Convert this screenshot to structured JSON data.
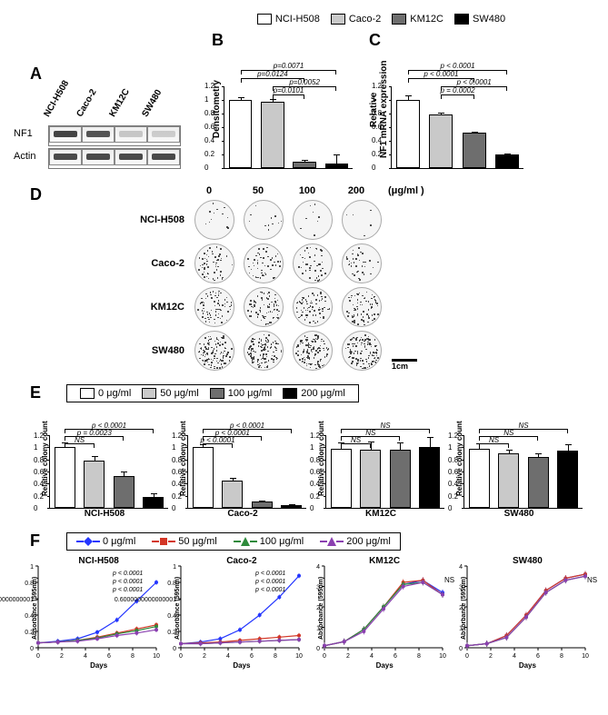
{
  "cellLines": [
    "NCI-H508",
    "Caco-2",
    "KM12C",
    "SW480"
  ],
  "topLegend": {
    "items": [
      {
        "label": "NCI-H508",
        "color": "#ffffff"
      },
      {
        "label": "Caco-2",
        "color": "#c9c9c9"
      },
      {
        "label": "KM12C",
        "color": "#6e6e6e"
      },
      {
        "label": "SW480",
        "color": "#000000"
      }
    ]
  },
  "panelA": {
    "label": "A",
    "rowLabels": [
      "NF1",
      "Actin"
    ],
    "laneHeaders": [
      "NCI-H508",
      "Caco-2",
      "KM12C",
      "SW480"
    ],
    "nf1Intensity": [
      0.85,
      0.75,
      0.08,
      0.05
    ],
    "actinIntensity": [
      0.8,
      0.8,
      0.8,
      0.8
    ],
    "laneWidth": 36
  },
  "panelB": {
    "label": "B",
    "ylabel": "Densitometry",
    "ymax": 1.2,
    "ticks": [
      0,
      0.2,
      0.4,
      0.6,
      0.8,
      1.0,
      1.2
    ],
    "bars": [
      {
        "v": 1.0,
        "err": 0.05,
        "color": "#ffffff"
      },
      {
        "v": 0.97,
        "err": 0.06,
        "color": "#c9c9c9"
      },
      {
        "v": 0.1,
        "err": 0.04,
        "color": "#6e6e6e"
      },
      {
        "v": 0.07,
        "err": 0.15,
        "color": "#000000"
      }
    ],
    "sig": [
      {
        "from": 0,
        "to": 3,
        "text": "p=0.0071",
        "y": 1.44
      },
      {
        "from": 0,
        "to": 2,
        "text": "p=0.0124",
        "y": 1.32
      },
      {
        "from": 1,
        "to": 3,
        "text": "p=0.0052",
        "y": 1.2
      },
      {
        "from": 1,
        "to": 2,
        "text": "p=0.0101",
        "y": 1.08
      }
    ]
  },
  "panelC": {
    "label": "C",
    "ylabel": "Relative\nNF1 mRNA expression",
    "ymax": 1.2,
    "ticks": [
      0,
      0.2,
      0.4,
      0.6,
      0.8,
      1.0,
      1.2
    ],
    "bars": [
      {
        "v": 1.0,
        "err": 0.08,
        "color": "#ffffff"
      },
      {
        "v": 0.79,
        "err": 0.04,
        "color": "#c9c9c9"
      },
      {
        "v": 0.52,
        "err": 0.03,
        "color": "#6e6e6e"
      },
      {
        "v": 0.2,
        "err": 0.03,
        "color": "#000000"
      }
    ],
    "sig": [
      {
        "from": 0,
        "to": 3,
        "text": "p < 0.0001",
        "y": 1.44
      },
      {
        "from": 0,
        "to": 2,
        "text": "p < 0.0001",
        "y": 1.32
      },
      {
        "from": 1,
        "to": 3,
        "text": "p < 0.0001",
        "y": 1.2
      },
      {
        "from": 1,
        "to": 2,
        "text": "p = 0.0002",
        "y": 1.08
      }
    ]
  },
  "panelD": {
    "label": "D",
    "doses": [
      "0",
      "50",
      "100",
      "200"
    ],
    "doseUnit": "(μg/ml )",
    "rows": [
      "NCI-H508",
      "Caco-2",
      "KM12C",
      "SW480"
    ],
    "density": [
      [
        0.1,
        0.09,
        0.07,
        0.04
      ],
      [
        0.45,
        0.4,
        0.35,
        0.32
      ],
      [
        0.6,
        0.6,
        0.6,
        0.6
      ],
      [
        0.95,
        0.95,
        0.92,
        0.95
      ]
    ],
    "scale": "1cm"
  },
  "panelE": {
    "label": "E",
    "doseLegend": [
      {
        "label": "0 μg/ml",
        "color": "#ffffff"
      },
      {
        "label": "50 μg/ml",
        "color": "#c9c9c9"
      },
      {
        "label": "100 μg/ml",
        "color": "#6e6e6e"
      },
      {
        "label": "200 μg/ml",
        "color": "#000000"
      }
    ],
    "ylabel": "Relative colony count",
    "ymax": 1.2,
    "ticks": [
      0,
      0.2,
      0.4,
      0.6,
      0.8,
      1.0,
      1.2
    ],
    "charts": [
      {
        "title": "NCI-H508",
        "bars": [
          1.0,
          0.78,
          0.52,
          0.18
        ],
        "err": [
          0.1,
          0.09,
          0.1,
          0.07
        ],
        "sig": [
          {
            "from": 0,
            "to": 1,
            "text": "NS",
            "y": 1.06
          },
          {
            "from": 0,
            "to": 2,
            "text": "p = 0.0023",
            "y": 1.18
          },
          {
            "from": 0,
            "to": 3,
            "text": "p < 0.0001",
            "y": 1.3
          }
        ]
      },
      {
        "title": "Caco-2",
        "bars": [
          1.0,
          0.45,
          0.1,
          0.05
        ],
        "err": [
          0.06,
          0.06,
          0.03,
          0.02
        ],
        "sig": [
          {
            "from": 0,
            "to": 1,
            "text": "p < 0.0001",
            "y": 1.06
          },
          {
            "from": 0,
            "to": 2,
            "text": "p < 0.0001",
            "y": 1.18
          },
          {
            "from": 0,
            "to": 3,
            "text": "p < 0.0001",
            "y": 1.3
          }
        ]
      },
      {
        "title": "KM12C",
        "bars": [
          0.98,
          0.96,
          0.96,
          1.0
        ],
        "err": [
          0.12,
          0.15,
          0.13,
          0.18
        ],
        "sig": [
          {
            "from": 0,
            "to": 1,
            "text": "NS",
            "y": 1.06
          },
          {
            "from": 0,
            "to": 2,
            "text": "NS",
            "y": 1.18
          },
          {
            "from": 0,
            "to": 3,
            "text": "NS",
            "y": 1.3
          }
        ]
      },
      {
        "title": "SW480",
        "bars": [
          0.98,
          0.9,
          0.84,
          0.94
        ],
        "err": [
          0.1,
          0.08,
          0.08,
          0.12
        ],
        "sig": [
          {
            "from": 0,
            "to": 1,
            "text": "NS",
            "y": 1.06
          },
          {
            "from": 0,
            "to": 2,
            "text": "NS",
            "y": 1.18
          },
          {
            "from": 0,
            "to": 3,
            "text": "NS",
            "y": 1.3
          }
        ]
      }
    ]
  },
  "panelF": {
    "label": "F",
    "lineLegend": [
      {
        "label": "0 μg/ml",
        "color": "#2436ff",
        "marker": "diamond"
      },
      {
        "label": "50 μg/ml",
        "color": "#d33626",
        "marker": "square"
      },
      {
        "label": "100 μg/ml",
        "color": "#2e8a3b",
        "marker": "triangle"
      },
      {
        "label": "200 μg/ml",
        "color": "#8a3fb0",
        "marker": "triangle"
      }
    ],
    "xlabel": "Days",
    "ylabel": "Absorbance (595nm)",
    "xticks": [
      0,
      2,
      4,
      6,
      8,
      10
    ],
    "charts": [
      {
        "title": "NCI-H508",
        "ymax": 1.0,
        "ystep": 0.2,
        "sig": [
          "p < 0.0001",
          "p < 0.0001",
          "p < 0.0001"
        ],
        "series": [
          [
            0.06,
            0.08,
            0.11,
            0.19,
            0.34,
            0.57,
            0.8
          ],
          [
            0.06,
            0.07,
            0.09,
            0.13,
            0.18,
            0.23,
            0.28
          ],
          [
            0.06,
            0.07,
            0.09,
            0.12,
            0.17,
            0.21,
            0.26
          ],
          [
            0.06,
            0.07,
            0.08,
            0.11,
            0.15,
            0.18,
            0.22
          ]
        ]
      },
      {
        "title": "Caco-2",
        "ymax": 1.0,
        "ystep": 0.2,
        "sig": [
          "p < 0.0001",
          "p < 0.0001",
          "p < 0.0001"
        ],
        "series": [
          [
            0.05,
            0.07,
            0.11,
            0.22,
            0.4,
            0.62,
            0.88
          ],
          [
            0.05,
            0.06,
            0.07,
            0.09,
            0.11,
            0.13,
            0.15
          ],
          [
            0.05,
            0.05,
            0.06,
            0.07,
            0.08,
            0.09,
            0.1
          ],
          [
            0.05,
            0.05,
            0.06,
            0.07,
            0.08,
            0.09,
            0.1
          ]
        ]
      },
      {
        "title": "KM12C",
        "ymax": 4,
        "ystep": 1,
        "sig": [
          "NS"
        ],
        "series": [
          [
            0.1,
            0.3,
            0.9,
            2.0,
            3.1,
            3.3,
            2.7
          ],
          [
            0.1,
            0.3,
            0.9,
            2.0,
            3.2,
            3.3,
            2.6
          ],
          [
            0.1,
            0.3,
            0.9,
            2.0,
            3.1,
            3.2,
            2.6
          ],
          [
            0.1,
            0.3,
            0.8,
            1.9,
            3.0,
            3.2,
            2.6
          ]
        ]
      },
      {
        "title": "SW480",
        "ymax": 4,
        "ystep": 1,
        "sig": [
          "NS"
        ],
        "series": [
          [
            0.1,
            0.2,
            0.6,
            1.6,
            2.8,
            3.4,
            3.6
          ],
          [
            0.1,
            0.2,
            0.6,
            1.6,
            2.8,
            3.4,
            3.6
          ],
          [
            0.1,
            0.2,
            0.5,
            1.5,
            2.7,
            3.3,
            3.5
          ],
          [
            0.1,
            0.2,
            0.5,
            1.5,
            2.7,
            3.3,
            3.5
          ]
        ]
      }
    ]
  }
}
